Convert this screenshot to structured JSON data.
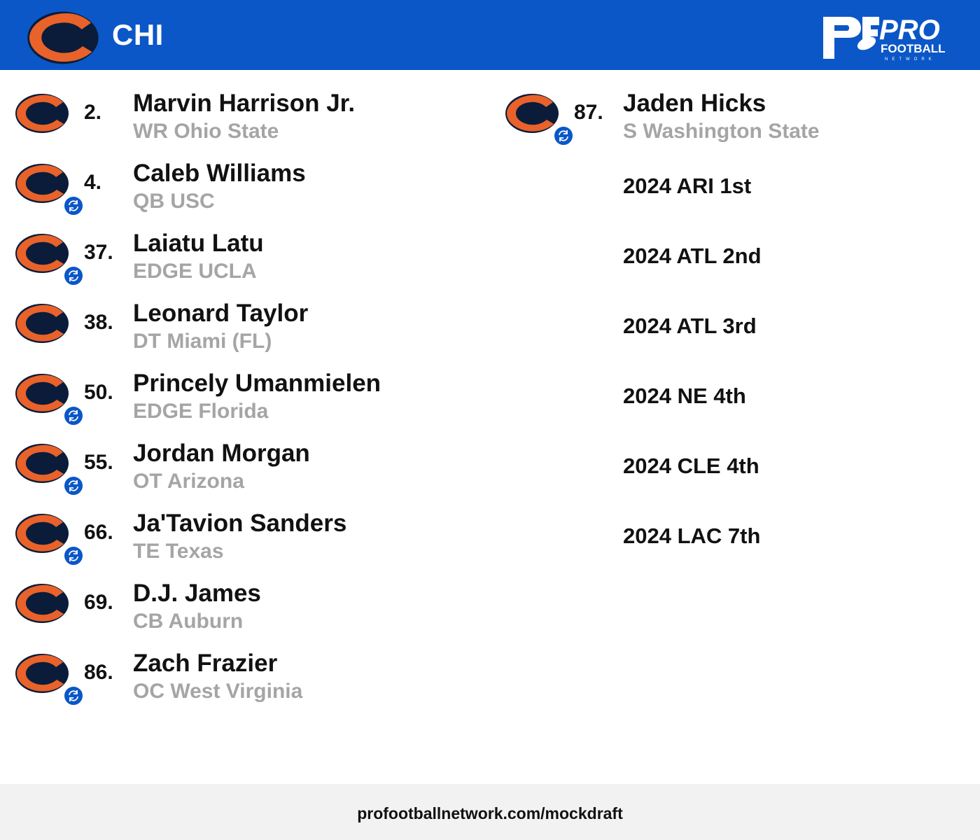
{
  "header": {
    "team": "CHI",
    "team_logo_icon": "bears-c-logo-icon",
    "brand_logo_icon": "pro-football-network-logo-icon",
    "brand_text": [
      "PRO",
      "FOOTBALL",
      "NETWORK"
    ],
    "bg_color": "#0b57c7"
  },
  "picks_left": [
    {
      "number": "2.",
      "name": "Marvin Harrison Jr.",
      "detail": "WR Ohio State",
      "traded": false
    },
    {
      "number": "4.",
      "name": "Caleb Williams",
      "detail": "QB USC",
      "traded": true
    },
    {
      "number": "37.",
      "name": "Laiatu Latu",
      "detail": "EDGE UCLA",
      "traded": true
    },
    {
      "number": "38.",
      "name": "Leonard Taylor",
      "detail": "DT Miami (FL)",
      "traded": false
    },
    {
      "number": "50.",
      "name": "Princely Umanmielen",
      "detail": "EDGE Florida",
      "traded": true
    },
    {
      "number": "55.",
      "name": "Jordan Morgan",
      "detail": "OT Arizona",
      "traded": true
    },
    {
      "number": "66.",
      "name": "Ja'Tavion Sanders",
      "detail": "TE Texas",
      "traded": true
    },
    {
      "number": "69.",
      "name": "D.J. James",
      "detail": "CB Auburn",
      "traded": false
    },
    {
      "number": "86.",
      "name": "Zach Frazier",
      "detail": "OC West Virginia",
      "traded": true
    }
  ],
  "picks_right": [
    {
      "number": "87.",
      "name": "Jaden Hicks",
      "detail": "S Washington State",
      "traded": true
    }
  ],
  "future_picks": [
    "2024 ARI 1st",
    "2024 ATL 2nd",
    "2024 ATL 3rd",
    "2024 NE 4th",
    "2024 CLE 4th",
    "2024 LAC 7th"
  ],
  "icons": {
    "trade": "trade-swap-icon"
  },
  "colors": {
    "primary": "#0b57c7",
    "bears_orange": "#e8622a",
    "bears_navy": "#0b1c3a",
    "muted_text": "#a5a5a5"
  },
  "footer": {
    "url": "profootballnetwork.com/mockdraft"
  }
}
